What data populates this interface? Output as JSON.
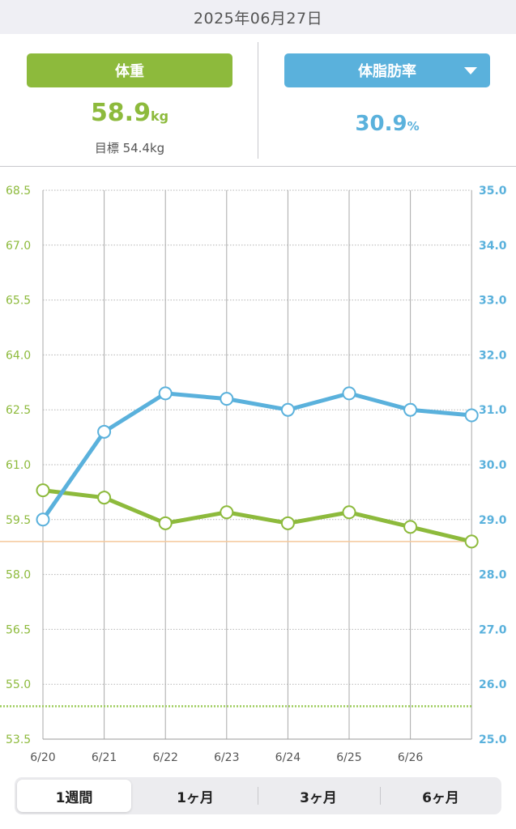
{
  "header": {
    "date": "2025年06月27日"
  },
  "summary": {
    "weight": {
      "button_label": "体重",
      "value": "58.9",
      "unit": "kg",
      "target_text": "目標 54.4kg"
    },
    "fat": {
      "button_label": "体脂肪率",
      "value": "30.9",
      "unit": "%"
    }
  },
  "chart_data": {
    "type": "line",
    "categories": [
      "6/20",
      "6/21",
      "6/22",
      "6/23",
      "6/24",
      "6/25",
      "6/26",
      "6/27"
    ],
    "x_tick_labels": [
      "6/20",
      "6/21",
      "6/22",
      "6/23",
      "6/24",
      "6/25",
      "6/26"
    ],
    "series": [
      {
        "axis": "left",
        "color": "#8dba3c",
        "values": [
          60.3,
          60.1,
          59.4,
          59.7,
          59.4,
          59.7,
          59.3,
          58.9
        ]
      },
      {
        "axis": "right",
        "color": "#5ab1dc",
        "values": [
          29.0,
          30.6,
          31.3,
          31.2,
          31.0,
          31.3,
          31.0,
          30.9
        ]
      }
    ],
    "y_left": {
      "min": 53.5,
      "max": 68.5,
      "ticks": [
        "68.5",
        "67.0",
        "65.5",
        "64.0",
        "62.5",
        "61.0",
        "59.5",
        "58.0",
        "56.5",
        "55.0",
        "53.5"
      ],
      "color": "#8dba3c"
    },
    "y_right": {
      "min": 25.0,
      "max": 35.0,
      "ticks": [
        "35.0",
        "34.0",
        "33.0",
        "32.0",
        "31.0",
        "30.0",
        "29.0",
        "28.0",
        "27.0",
        "26.0",
        "25.0"
      ],
      "color": "#5ab1dc"
    },
    "reference_lines": [
      {
        "axis": "left",
        "value": 58.9,
        "color": "#f5c89a",
        "style": "solid"
      },
      {
        "axis": "left",
        "value": 54.4,
        "color": "#9ccc5a",
        "style": "dotted"
      }
    ],
    "grid": true
  },
  "period_tabs": {
    "items": [
      "1週間",
      "1ヶ月",
      "3ヶ月",
      "6ヶ月"
    ],
    "selected": "1週間"
  }
}
